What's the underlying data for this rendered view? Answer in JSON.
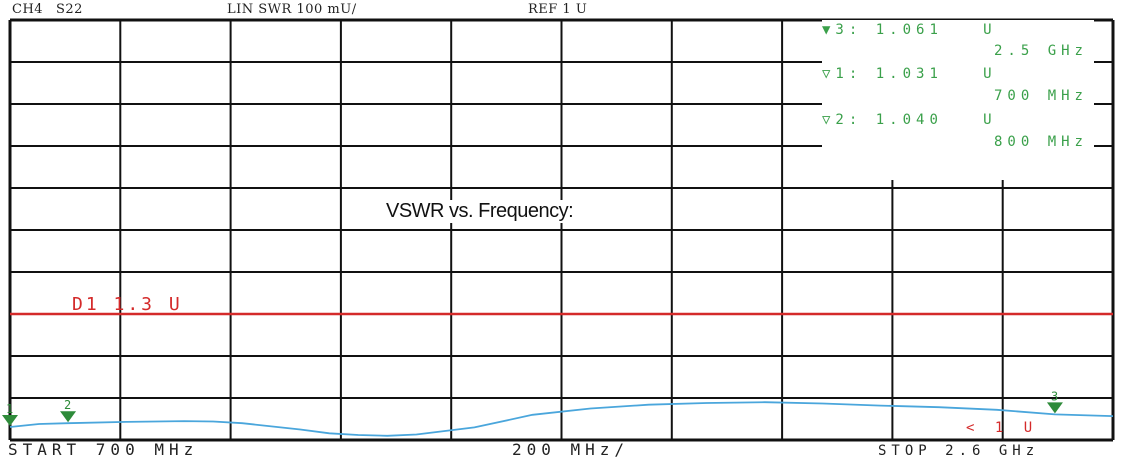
{
  "header": {
    "channel": "CH4",
    "parameter": "S22",
    "format": "LIN SWR 100 mU/",
    "reference": "REF 1 U"
  },
  "footer": {
    "start": "START   700 MHz",
    "span": "200 MHz/",
    "stop": "STOP 2.6 GHz"
  },
  "markers": [
    {
      "label": "▼3:",
      "value": "1.061   U",
      "freq": "2.5 GHz",
      "active": true
    },
    {
      "label": "▽1:",
      "value": "1.031   U",
      "freq": "700 MHz",
      "active": false
    },
    {
      "label": "▽2:",
      "value": "1.040   U",
      "freq": "800 MHz",
      "active": false
    }
  ],
  "overlay": {
    "title": "VSWR vs. Frequency:",
    "limit_line_label": "D1  1.3  U",
    "ref_pointer": "<  1  U"
  },
  "chart_data": {
    "type": "line",
    "title": "VSWR vs. Frequency:",
    "x_unit": "MHz",
    "y_unit": "U",
    "xlim": [
      700,
      2600
    ],
    "ylim": [
      1.0,
      2.0
    ],
    "reference_value": 1.0,
    "grid": true,
    "limit_line": {
      "name": "D1",
      "value": 1.3,
      "color": "#d42a2a"
    },
    "series": [
      {
        "color": "#4aa6dc",
        "x": [
          700,
          750,
          800,
          900,
          1000,
          1050,
          1100,
          1200,
          1250,
          1300,
          1350,
          1400,
          1500,
          1600,
          1700,
          1800,
          1900,
          2000,
          2100,
          2200,
          2300,
          2400,
          2500,
          2600
        ],
        "y": [
          1.031,
          1.038,
          1.04,
          1.043,
          1.045,
          1.044,
          1.04,
          1.025,
          1.016,
          1.012,
          1.01,
          1.013,
          1.03,
          1.06,
          1.075,
          1.084,
          1.088,
          1.09,
          1.087,
          1.082,
          1.078,
          1.072,
          1.061,
          1.057
        ]
      }
    ],
    "markers": [
      {
        "id": "1",
        "x": 700,
        "y": 1.031
      },
      {
        "id": "2",
        "x": 800,
        "y": 1.04
      },
      {
        "id": "3",
        "x": 2500,
        "y": 1.061
      }
    ],
    "colors": {
      "grid": "#111111",
      "trace": "#4aa6dc",
      "limit": "#d42a2a",
      "marker": "#2e8b3a"
    }
  }
}
